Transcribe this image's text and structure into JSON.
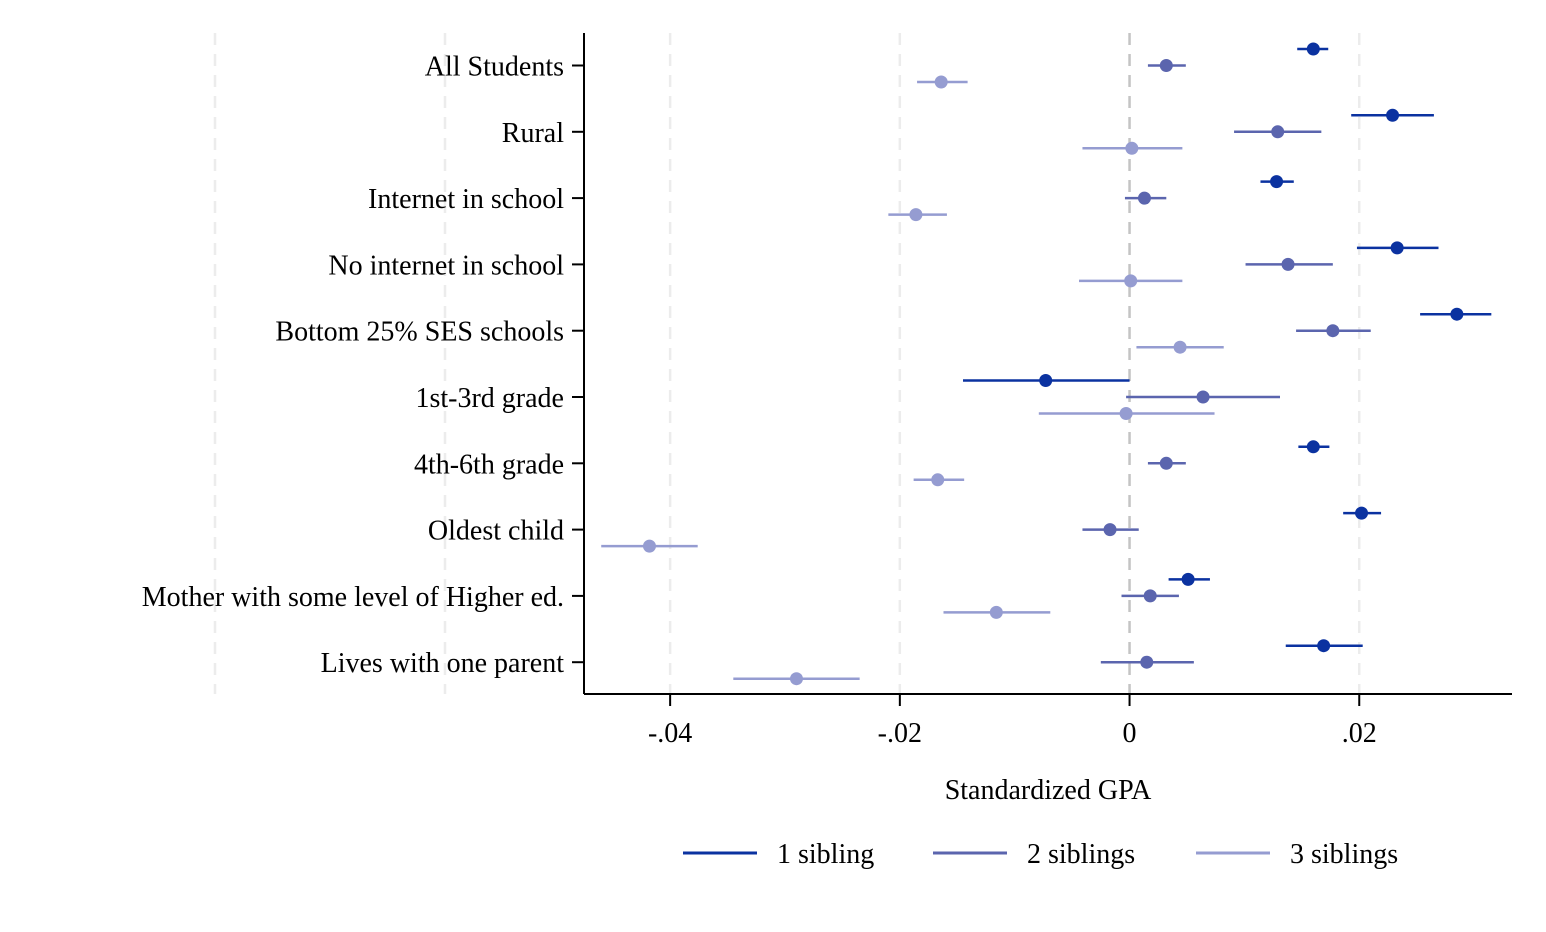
{
  "chart_data": {
    "type": "coefficient-plot",
    "title": "",
    "xlabel": "Standardized GPA",
    "ylabel": "",
    "xlim": [
      -0.0475,
      0.0333
    ],
    "xticks": [
      {
        "value": -0.04,
        "label": "-.04"
      },
      {
        "value": -0.02,
        "label": "-.02"
      },
      {
        "value": 0,
        "label": "0"
      },
      {
        "value": 0.02,
        "label": ".02"
      }
    ],
    "categories": [
      "All Students",
      "Rural",
      "Internet in school",
      "No internet in school",
      "Bottom 25% SES schools",
      "1st-3rd grade",
      "4th-6th grade",
      "Oldest child",
      "Mother with some level of Higher ed.",
      "Lives with one parent"
    ],
    "series": [
      {
        "name": "1 sibling",
        "color": "#0b32a0",
        "points": [
          {
            "est": 0.016,
            "lo": 0.0146,
            "hi": 0.0173
          },
          {
            "est": 0.0229,
            "lo": 0.0193,
            "hi": 0.0265
          },
          {
            "est": 0.0128,
            "lo": 0.0114,
            "hi": 0.0143
          },
          {
            "est": 0.0233,
            "lo": 0.0198,
            "hi": 0.0269
          },
          {
            "est": 0.0285,
            "lo": 0.0253,
            "hi": 0.0315
          },
          {
            "est": -0.0073,
            "lo": -0.0145,
            "hi": 0.0
          },
          {
            "est": 0.016,
            "lo": 0.0147,
            "hi": 0.0174
          },
          {
            "est": 0.0202,
            "lo": 0.0186,
            "hi": 0.0219
          },
          {
            "est": 0.0051,
            "lo": 0.0034,
            "hi": 0.007
          },
          {
            "est": 0.0169,
            "lo": 0.0136,
            "hi": 0.0203
          }
        ]
      },
      {
        "name": "2 siblings",
        "color": "#5b65ae",
        "points": [
          {
            "est": 0.0032,
            "lo": 0.0016,
            "hi": 0.0049
          },
          {
            "est": 0.0129,
            "lo": 0.0091,
            "hi": 0.0167
          },
          {
            "est": 0.0013,
            "lo": -0.0004,
            "hi": 0.0032
          },
          {
            "est": 0.0138,
            "lo": 0.0101,
            "hi": 0.0177
          },
          {
            "est": 0.0177,
            "lo": 0.0145,
            "hi": 0.021
          },
          {
            "est": 0.0064,
            "lo": -0.0003,
            "hi": 0.0131
          },
          {
            "est": 0.0032,
            "lo": 0.0016,
            "hi": 0.0049
          },
          {
            "est": -0.0017,
            "lo": -0.0041,
            "hi": 0.0008
          },
          {
            "est": 0.0018,
            "lo": -0.0007,
            "hi": 0.0043
          },
          {
            "est": 0.0015,
            "lo": -0.0025,
            "hi": 0.0056
          }
        ]
      },
      {
        "name": "3 siblings",
        "color": "#959cd1",
        "points": [
          {
            "est": -0.0164,
            "lo": -0.0185,
            "hi": -0.0141
          },
          {
            "est": 0.0002,
            "lo": -0.0041,
            "hi": 0.0046
          },
          {
            "est": -0.0186,
            "lo": -0.021,
            "hi": -0.0159
          },
          {
            "est": 0.0001,
            "lo": -0.0044,
            "hi": 0.0046
          },
          {
            "est": 0.0044,
            "lo": 0.0006,
            "hi": 0.0082
          },
          {
            "est": -0.0003,
            "lo": -0.0079,
            "hi": 0.0074
          },
          {
            "est": -0.0167,
            "lo": -0.0188,
            "hi": -0.0144
          },
          {
            "est": -0.0418,
            "lo": -0.046,
            "hi": -0.0376
          },
          {
            "est": -0.0116,
            "lo": -0.0162,
            "hi": -0.0069
          },
          {
            "est": -0.029,
            "lo": -0.0345,
            "hi": -0.0235
          }
        ]
      }
    ],
    "grid": {
      "vertical_dashed": true,
      "reference_line_at": 0
    },
    "legend": {
      "placement": "bottom-center"
    }
  }
}
